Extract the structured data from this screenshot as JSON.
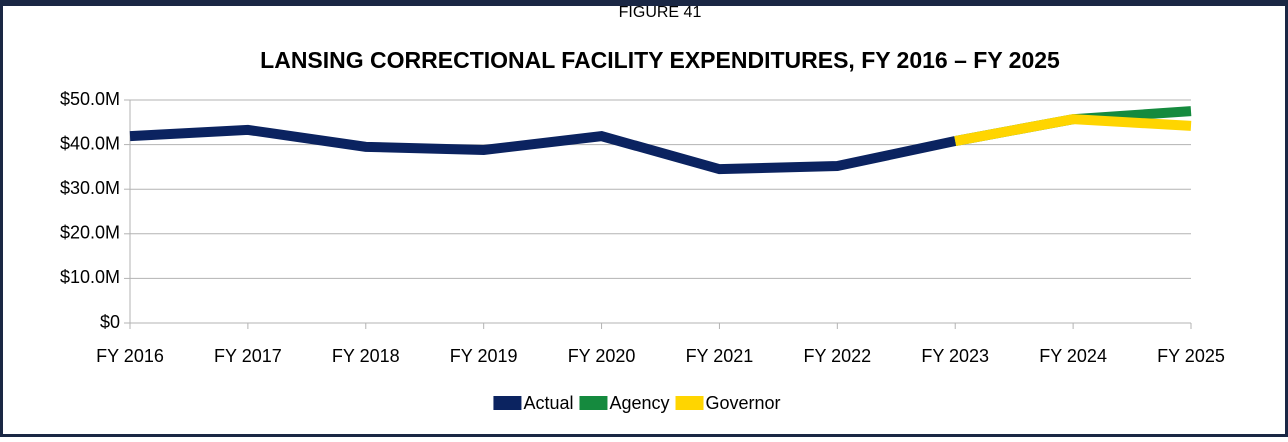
{
  "chart_data": {
    "type": "line",
    "subtitle": "FIGURE 41",
    "title": "LANSING CORRECTIONAL FACILITY EXPENDITURES, FY 2016 – FY 2025",
    "categories": [
      "FY 2016",
      "FY 2017",
      "FY 2018",
      "FY 2019",
      "FY 2020",
      "FY 2021",
      "FY 2022",
      "FY 2023",
      "FY 2024",
      "FY 2025"
    ],
    "series": [
      {
        "name": "Actual",
        "color": "#0b2360",
        "values": [
          41.9,
          43.3,
          39.5,
          38.8,
          41.9,
          34.5,
          35.2,
          40.8,
          null,
          null
        ]
      },
      {
        "name": "Agency",
        "color": "#158a3e",
        "values": [
          null,
          null,
          null,
          null,
          null,
          null,
          null,
          40.8,
          45.7,
          47.5
        ]
      },
      {
        "name": "Governor",
        "color": "#ffd500",
        "values": [
          null,
          null,
          null,
          null,
          null,
          null,
          null,
          40.8,
          45.7,
          44.2
        ]
      }
    ],
    "ylim": [
      0,
      50
    ],
    "yticks": [
      {
        "value": 0,
        "label": "$0"
      },
      {
        "value": 10,
        "label": "$10.0M"
      },
      {
        "value": 20,
        "label": "$20.0M"
      },
      {
        "value": 30,
        "label": "$30.0M"
      },
      {
        "value": 40,
        "label": "$40.0M"
      },
      {
        "value": 50,
        "label": "$50.0M"
      }
    ],
    "grid": true,
    "legend": "bottom"
  }
}
